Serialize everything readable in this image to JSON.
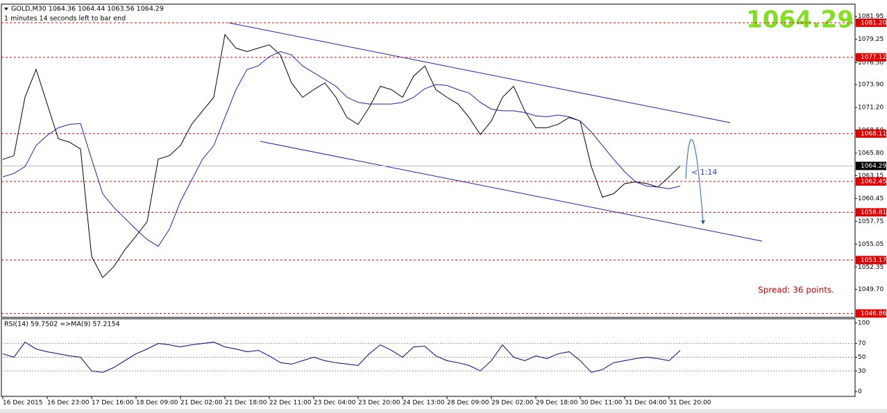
{
  "header": {
    "symbol_line": "GOLD,M30  1064.36 1064.44 1063.56 1064.29",
    "timer": "1 minutes 14 seconds left to bar end",
    "bid": "1064.29",
    "spread": "Spread: 36 points.",
    "countdown": "< 1:14"
  },
  "chart_data": [
    {
      "type": "line",
      "categories": [
        "16 Dec 2015",
        null,
        null,
        null,
        "16 Dec 23:00",
        null,
        null,
        null,
        "17 Dec 16:00",
        null,
        null,
        null,
        "18 Dec 09:00",
        null,
        null,
        null,
        "21 Dec 02:00",
        null,
        null,
        null,
        "21 Dec 18:00",
        null,
        null,
        null,
        "22 Dec 11:00",
        null,
        null,
        null,
        "23 Dec 04:00",
        null,
        null,
        null,
        "23 Dec 20:00",
        null,
        null,
        null,
        "24 Dec 13:00",
        null,
        null,
        null,
        "28 Dec 09:00",
        null,
        null,
        null,
        "29 Dec 02:00",
        null,
        null,
        null,
        "29 Dec 18:00",
        null,
        null,
        null,
        "30 Dec 11:00",
        null,
        null,
        null,
        "31 Dec 04:00",
        null,
        null,
        null,
        "31 Dec 20:00",
        null
      ],
      "series": [
        {
          "color": "#000000",
          "values": [
            1065.06,
            1065.5,
            1072.4,
            1075.7,
            1071.6,
            1067.5,
            1067.1,
            1066.3,
            1053.6,
            1051.1,
            1052.4,
            1054.4,
            1056.0,
            1057.7,
            1065.1,
            1065.5,
            1066.7,
            1069.2,
            1070.8,
            1072.4,
            1079.8,
            1078.2,
            1077.8,
            1078.2,
            1078.6,
            1077.4,
            1074.1,
            1072.4,
            1073.3,
            1074.1,
            1072.4,
            1070.0,
            1069.2,
            1071.2,
            1073.7,
            1073.3,
            1072.4,
            1074.9,
            1076.1,
            1073.3,
            1072.4,
            1071.6,
            1070.0,
            1068.0,
            1069.6,
            1072.4,
            1073.7,
            1070.8,
            1068.8,
            1068.8,
            1069.2,
            1070.0,
            1069.6,
            1064.2,
            1060.6,
            1061.0,
            1062.2,
            1062.4,
            1062.2,
            1061.8,
            1063.0,
            1064.29
          ]
        },
        {
          "color": "#2020c0",
          "values": [
            1063.0,
            1063.4,
            1064.2,
            1066.7,
            1067.9,
            1068.8,
            1069.2,
            1069.3,
            1065.1,
            1061.0,
            1059.4,
            1058.1,
            1056.8,
            1055.6,
            1054.8,
            1056.8,
            1060.1,
            1062.6,
            1065.1,
            1066.7,
            1070.0,
            1073.3,
            1075.7,
            1076.1,
            1077.2,
            1077.8,
            1077.4,
            1076.1,
            1075.3,
            1074.5,
            1073.7,
            1072.4,
            1071.8,
            1071.6,
            1071.6,
            1071.6,
            1071.8,
            1072.4,
            1073.4,
            1073.9,
            1073.8,
            1073.3,
            1072.9,
            1071.8,
            1071.0,
            1070.8,
            1070.8,
            1070.6,
            1070.2,
            1070.1,
            1070.3,
            1070.1,
            1069.6,
            1068.3,
            1066.7,
            1065.1,
            1063.6,
            1062.4,
            1061.9,
            1061.8,
            1061.6,
            1061.9
          ]
        }
      ],
      "ylim": [
        1046.4,
        1083.4
      ],
      "yticks": [
        1081.95,
        1079.25,
        {
          "value": 1076.5,
          "label": "1076.50"
        },
        {
          "value": 1073.9,
          "label": "1073.90"
        },
        {
          "value": 1071.2,
          "label": "1071.20"
        },
        {
          "value": 1068.5,
          "label": "1068.50"
        },
        {
          "value": 1065.8,
          "label": "1065.80"
        },
        1063.15,
        1060.45,
        1057.75,
        1055.05,
        1052.35,
        {
          "value": 1049.7,
          "label": "1049.70"
        }
      ],
      "levels": [
        {
          "value": 1081.2,
          "label": "1081.20"
        },
        1077.12,
        1068.11,
        1062.45,
        1058.81,
        1053.17,
        1046.86
      ],
      "level_color": "#e00000",
      "current": 1064.29
    },
    {
      "type": "line",
      "title": "RSI(14) 59.7502 =>MA(9) 57.2154",
      "series": [
        {
          "color": "#000080",
          "values": [
            55,
            50,
            72,
            62,
            58,
            55,
            52,
            50,
            30,
            28,
            35,
            45,
            55,
            62,
            70,
            68,
            65,
            68,
            70,
            72,
            65,
            62,
            58,
            60,
            52,
            42,
            40,
            45,
            50,
            45,
            42,
            40,
            38,
            55,
            68,
            60,
            50,
            65,
            66,
            52,
            45,
            42,
            38,
            30,
            45,
            68,
            50,
            45,
            52,
            48,
            55,
            58,
            45,
            28,
            32,
            42,
            45,
            48,
            50,
            48,
            45,
            59.75
          ]
        }
      ],
      "ylim": [
        -7,
        106
      ],
      "yticks": [
        100,
        70,
        50,
        30,
        0
      ],
      "grid_values": [
        70,
        50,
        30
      ]
    }
  ]
}
